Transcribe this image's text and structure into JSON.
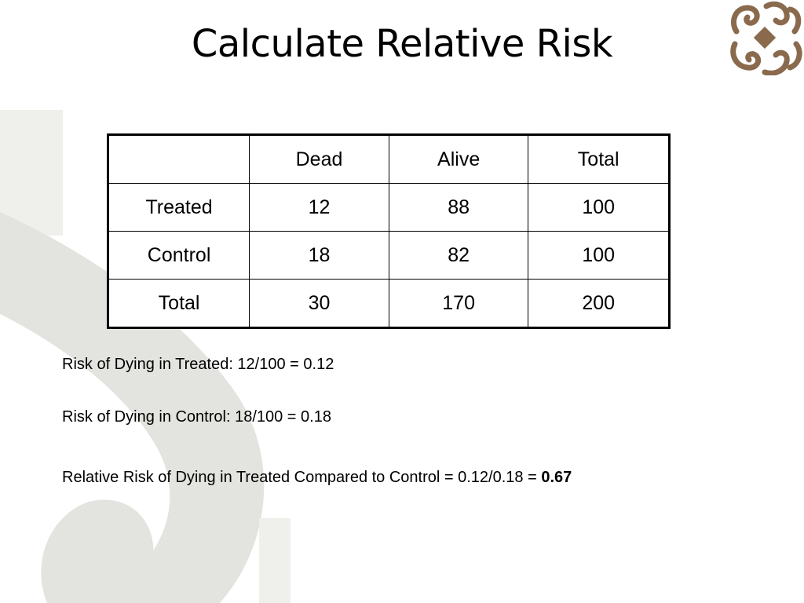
{
  "title": "Calculate Relative Risk",
  "table": {
    "header": [
      "",
      "Dead",
      "Alive",
      "Total"
    ],
    "rows": [
      [
        "Treated",
        "12",
        "88",
        "100"
      ],
      [
        "Control",
        "18",
        "82",
        "100"
      ],
      [
        "Total",
        "30",
        "170",
        "200"
      ]
    ]
  },
  "calculations": {
    "treated": "Risk of Dying in Treated: 12/100 = 0.12",
    "control": "Risk of Dying in Control: 18/100 = 0.18",
    "relative_risk_text": "Relative Risk of Dying in Treated Compared to Control = 0.12/0.18 = ",
    "relative_risk_value": "0.67"
  },
  "colors": {
    "swirl": "#e3e3df",
    "logo": "#8a6a4d"
  }
}
